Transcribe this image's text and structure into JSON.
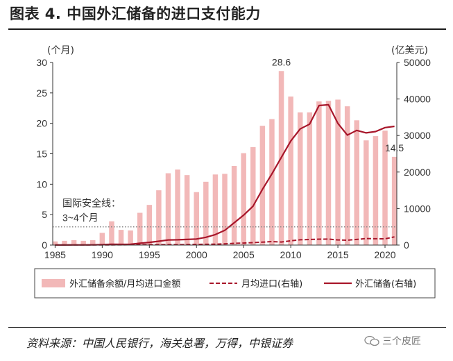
{
  "figure": {
    "title": "图表 4. 中国外汇储备的进口支付能力",
    "source": "资料来源：中国人民银行，海关总署，万得，中银证券",
    "watermark": "三个皮匠"
  },
  "colors": {
    "bar": "#f2b8b8",
    "line": "#a8162a",
    "threshold": "#888888"
  },
  "chart_data": {
    "type": "bar",
    "x": [
      1985,
      1986,
      1987,
      1988,
      1989,
      1990,
      1991,
      1992,
      1993,
      1994,
      1995,
      1996,
      1997,
      1998,
      1999,
      2000,
      2001,
      2002,
      2003,
      2004,
      2005,
      2006,
      2007,
      2008,
      2009,
      2010,
      2011,
      2012,
      2013,
      2014,
      2015,
      2016,
      2017,
      2018,
      2019,
      2020,
      2021
    ],
    "series": [
      {
        "name": "外汇储备余额/月均进口金额",
        "type": "bar",
        "axis": "left",
        "values": [
          0.6,
          0.7,
          0.8,
          0.7,
          0.8,
          2.0,
          3.9,
          2.5,
          2.4,
          5.3,
          6.6,
          9.0,
          11.8,
          12.4,
          11.5,
          8.7,
          10.4,
          11.6,
          11.7,
          13.0,
          15.1,
          16.1,
          19.6,
          20.7,
          28.6,
          24.4,
          21.8,
          21.8,
          23.6,
          23.7,
          23.9,
          22.8,
          20.5,
          17.2,
          17.9,
          18.8,
          14.5
        ]
      },
      {
        "name": "月均进口(右轴)",
        "type": "line",
        "style": "dashed",
        "axis": "right",
        "values": [
          35,
          36,
          37,
          46,
          49,
          44,
          53,
          67,
          87,
          96,
          110,
          115,
          119,
          117,
          138,
          188,
          203,
          245,
          344,
          467,
          548,
          660,
          798,
          943,
          838,
          1163,
          1452,
          1515,
          1617,
          1633,
          1402,
          1325,
          1535,
          1784,
          1731,
          1720,
          2234
        ]
      },
      {
        "name": "外汇储备(右轴)",
        "type": "line",
        "style": "solid",
        "axis": "right",
        "values": [
          26,
          21,
          29,
          34,
          55,
          111,
          217,
          194,
          212,
          516,
          736,
          1050,
          1399,
          1450,
          1547,
          1656,
          2122,
          2864,
          4033,
          6099,
          8189,
          10663,
          15282,
          19460,
          23992,
          28473,
          31811,
          33116,
          38213,
          38430,
          33304,
          30105,
          31399,
          30727,
          31079,
          32165,
          32502
        ]
      }
    ],
    "annotations": [
      {
        "text": "28.6",
        "x": 2009,
        "y": 28.6
      },
      {
        "text": "14.5",
        "x": 2021,
        "y": 14.5
      }
    ],
    "threshold": {
      "label_line1": "国际安全线：",
      "label_line2": "3~4个月",
      "value": 3
    },
    "ylim_left": [
      0,
      30
    ],
    "ylim_right": [
      0,
      50000
    ],
    "y_ticks_left": [
      0,
      5,
      10,
      15,
      20,
      25,
      30
    ],
    "y_ticks_right": [
      0,
      10000,
      20000,
      30000,
      40000,
      50000
    ],
    "x_ticks": [
      1985,
      1990,
      1995,
      2000,
      2005,
      2010,
      2015,
      2020
    ],
    "ylabel_left": "(个月)",
    "ylabel_right": "(亿美元)",
    "legend": [
      "外汇储备余额/月均进口金额",
      "月均进口(右轴)",
      "外汇储备(右轴)"
    ],
    "legend_position": "bottom",
    "grid": false
  }
}
